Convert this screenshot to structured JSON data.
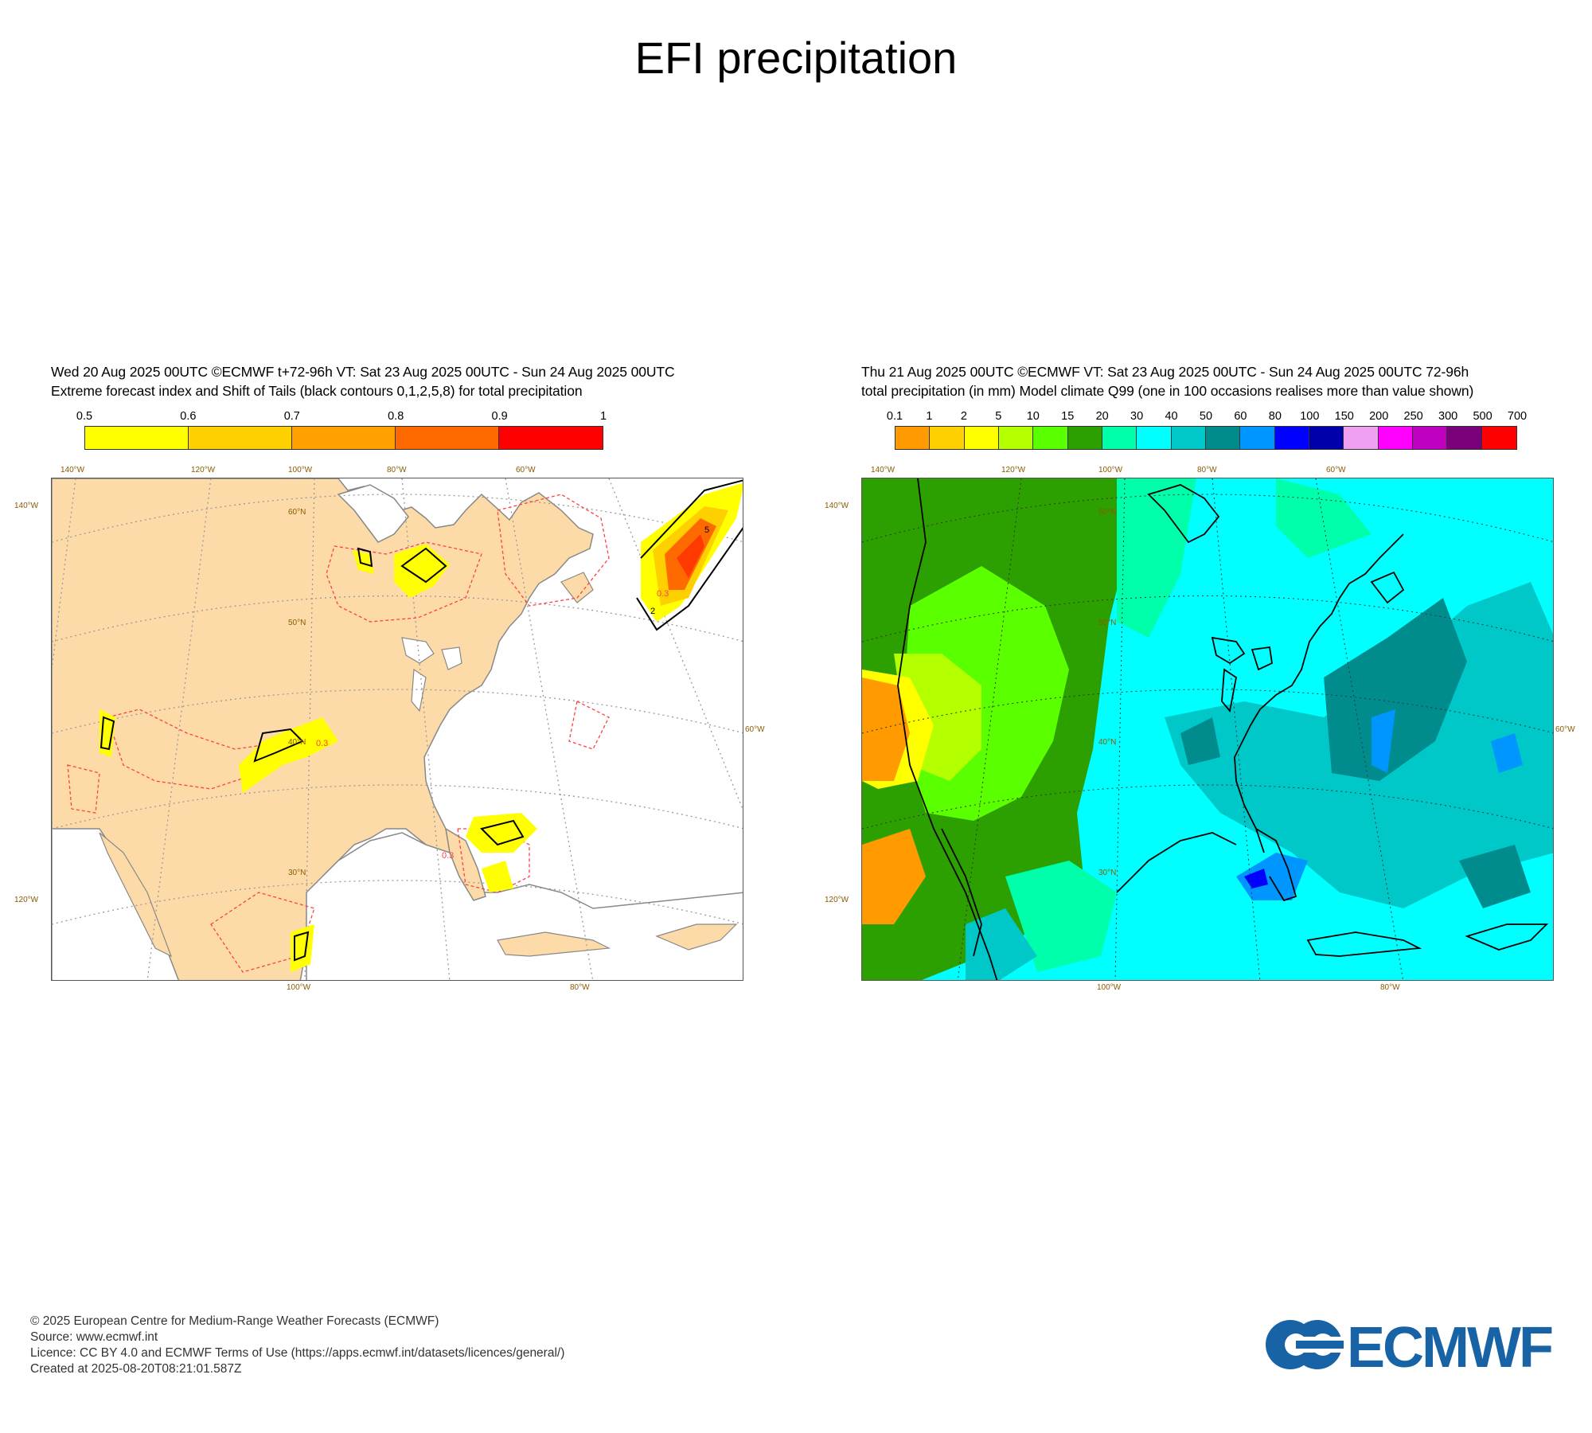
{
  "page_title": "EFI precipitation",
  "left_panel": {
    "header_line1": "Wed 20 Aug 2025 00UTC ©ECMWF t+72-96h  VT: Sat 23 Aug 2025 00UTC - Sun 24 Aug 2025 00UTC",
    "header_line2": "Extreme forecast index and Shift of Tails (black contours 0,1,2,5,8) for total precipitation",
    "colorbar_labels": [
      "0.5",
      "0.6",
      "0.7",
      "0.8",
      "0.9",
      "1"
    ],
    "colorbar_colors": [
      "#ffff00",
      "#ffd000",
      "#ffa200",
      "#ff6a00",
      "#ff0000"
    ],
    "top_lon_labels": [
      "140°W",
      "120°W",
      "100°W",
      "80°W",
      "60°W"
    ],
    "bottom_lon_labels": [
      "100°W",
      "80°W"
    ],
    "left_lat_labels": [
      "140°W",
      "120°W"
    ],
    "right_lat_labels": [
      "60°W"
    ],
    "inner_lat_labels": [
      "60°N",
      "50°N",
      "40°N",
      "30°N"
    ],
    "contour_labels": [
      "0.3",
      "0.3",
      "0.3",
      "2",
      "5"
    ],
    "colors": {
      "land": "#fddba8",
      "ocean": "#ffffff",
      "coast": "#888888",
      "dashed_contour": "#ff3b3b"
    }
  },
  "right_panel": {
    "header_line1": "Thu 21 Aug 2025 00UTC ©ECMWF VT: Sat 23 Aug 2025 00UTC - Sun 24 Aug 2025 00UTC   72-96h",
    "header_line2": "total precipitation (in mm)  Model climate Q99 (one in 100 occasions realises more than value shown)",
    "colorbar_labels": [
      "0.1",
      "1",
      "2",
      "5",
      "10",
      "15",
      "20",
      "30",
      "40",
      "50",
      "60",
      "80",
      "100",
      "150",
      "200",
      "250",
      "300",
      "500",
      "700"
    ],
    "colorbar_colors": [
      "#ff9a00",
      "#ffd000",
      "#ffff00",
      "#b4ff00",
      "#5aff00",
      "#2ca000",
      "#00ffaa",
      "#00ffff",
      "#00c8c8",
      "#008c8c",
      "#0096ff",
      "#0000ff",
      "#0000aa",
      "#f0a0f0",
      "#ff00ff",
      "#c000c0",
      "#7a007a",
      "#ff0000"
    ],
    "top_lon_labels": [
      "140°W",
      "120°W",
      "100°W",
      "80°W",
      "60°W"
    ],
    "bottom_lon_labels": [
      "100°W",
      "80°W"
    ],
    "left_lat_labels": [
      "140°W",
      "120°W"
    ],
    "right_lat_labels": [
      "60°W"
    ],
    "inner_lat_labels": [
      "60°N",
      "50°N",
      "40°N",
      "30°N"
    ]
  },
  "footer": {
    "line1": "© 2025 European Centre for Medium-Range Weather Forecasts (ECMWF)",
    "line2": "Source: www.ecmwf.int",
    "line3": "Licence: CC BY 4.0 and ECMWF Terms of Use (https://apps.ecmwf.int/datasets/licences/general/)",
    "line4": "Created at 2025-08-20T08:21:01.587Z"
  },
  "logo": {
    "text": "ECMWF",
    "color": "#1763a6"
  }
}
